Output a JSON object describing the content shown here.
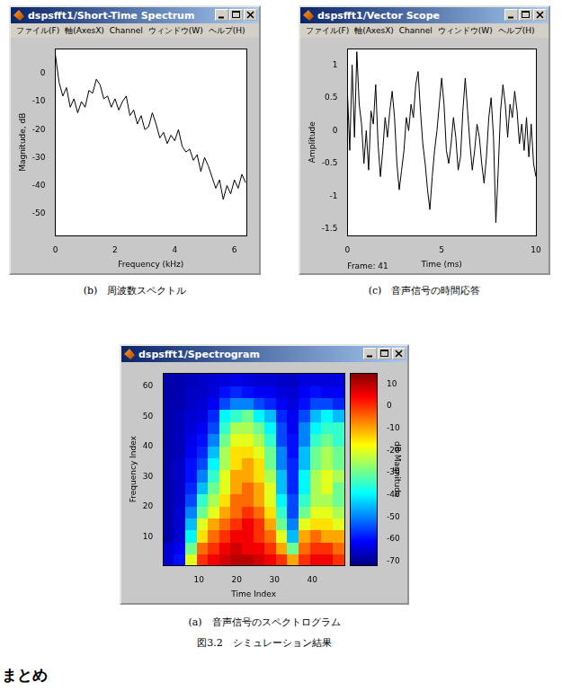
{
  "chart_data": [
    {
      "type": "line",
      "window_title": "dspsfft1/Short-Time Spectrum",
      "menu": [
        "ファイル(F)",
        "軸(AxesX)",
        "Channel",
        "ウィンドウ(W)",
        "ヘルプ(H)"
      ],
      "caption": "(b)　周波数スペクトル",
      "x_label": "Frequency (kHz)",
      "y_label": "Magnitude, dB",
      "xlim": [
        0,
        6.4
      ],
      "xticks": [
        0,
        2,
        4,
        6
      ],
      "ylim": [
        -58,
        9
      ],
      "yticks": [
        -50,
        -40,
        -30,
        -20,
        -10,
        0
      ],
      "grid": false,
      "color": "#000000",
      "x": [
        0,
        0.125,
        0.25,
        0.375,
        0.5,
        0.625,
        0.75,
        0.875,
        1,
        1.125,
        1.25,
        1.375,
        1.5,
        1.625,
        1.75,
        1.875,
        2,
        2.125,
        2.25,
        2.375,
        2.5,
        2.625,
        2.75,
        2.875,
        3,
        3.125,
        3.25,
        3.375,
        3.5,
        3.625,
        3.75,
        3.875,
        4,
        4.125,
        4.25,
        4.375,
        4.5,
        4.625,
        4.75,
        4.875,
        5,
        5.125,
        5.25,
        5.375,
        5.5,
        5.625,
        5.75,
        5.875,
        6,
        6.125,
        6.25,
        6.375
      ],
      "values": [
        7,
        -3,
        -8,
        -5,
        -12,
        -9,
        -14,
        -10,
        -12,
        -6,
        -7,
        -2,
        -4,
        -9,
        -8,
        -12,
        -9,
        -13,
        -10,
        -8,
        -15,
        -13,
        -18,
        -15,
        -20,
        -19,
        -14,
        -18,
        -23,
        -21,
        -25,
        -22,
        -24,
        -20,
        -26,
        -28,
        -27,
        -31,
        -29,
        -35,
        -30,
        -33,
        -37,
        -41,
        -38,
        -45,
        -40,
        -43,
        -38,
        -41,
        -36,
        -39
      ]
    },
    {
      "type": "line",
      "window_title": "dspsfft1/Vector Scope",
      "menu": [
        "ファイル(F)",
        "軸(AxesX)",
        "Channel",
        "ウィンドウ(W)",
        "ヘルプ(H)"
      ],
      "caption": "(c)　音声信号の時間応答",
      "frame_label": "Frame: 41",
      "x_label": "Time (ms)",
      "y_label": "Amplitude",
      "xlim": [
        0,
        10
      ],
      "xticks": [
        0,
        5,
        10
      ],
      "ylim": [
        -1.6,
        1.25
      ],
      "yticks": [
        -1.5,
        -1,
        -0.5,
        0,
        0.5,
        1
      ],
      "grid": false,
      "color": "#000000",
      "x": [
        0,
        0.125,
        0.25,
        0.375,
        0.5,
        0.625,
        0.75,
        0.875,
        1,
        1.125,
        1.25,
        1.375,
        1.5,
        1.625,
        1.75,
        1.875,
        2,
        2.125,
        2.25,
        2.375,
        2.5,
        2.625,
        2.75,
        2.875,
        3,
        3.125,
        3.25,
        3.375,
        3.5,
        3.625,
        3.75,
        3.875,
        4,
        4.125,
        4.25,
        4.375,
        4.5,
        4.625,
        4.75,
        4.875,
        5,
        5.125,
        5.25,
        5.375,
        5.5,
        5.625,
        5.75,
        5.875,
        6,
        6.125,
        6.25,
        6.375,
        6.5,
        6.625,
        6.75,
        6.875,
        7,
        7.125,
        7.25,
        7.375,
        7.5,
        7.625,
        7.75,
        7.875,
        8,
        8.125,
        8.25,
        8.375,
        8.5,
        8.625,
        8.75,
        8.875,
        9,
        9.125,
        9.25,
        9.375,
        9.5,
        9.625,
        9.75,
        9.875,
        10
      ],
      "values": [
        0.6,
        -0.3,
        1.0,
        -0.1,
        1.2,
        0.4,
        0.1,
        -0.5,
        0.0,
        -0.6,
        0.3,
        0.1,
        0.7,
        -0.2,
        -0.7,
        -0.3,
        0.2,
        -0.1,
        0.3,
        0.6,
        0.2,
        -0.5,
        -0.9,
        -0.6,
        -0.3,
        0.2,
        0.0,
        0.4,
        0.2,
        0.7,
        0.9,
        0.3,
        -0.2,
        -0.5,
        -0.9,
        -1.2,
        -0.7,
        -0.3,
        0.0,
        0.4,
        0.8,
        0.4,
        -0.3,
        -0.5,
        -0.2,
        0.2,
        -0.1,
        -0.6,
        -0.4,
        0.3,
        0.8,
        0.3,
        -0.2,
        -0.6,
        -0.3,
        0.1,
        -0.1,
        -0.5,
        -0.8,
        -0.4,
        0.2,
        0.5,
        -0.1,
        -1.4,
        -0.6,
        0.3,
        0.7,
        0.4,
        -0.1,
        0.4,
        0.2,
        0.6,
        0.3,
        -0.2,
        0.1,
        -0.3,
        0.2,
        -0.4,
        0.1,
        -0.5,
        -0.7
      ]
    },
    {
      "type": "heatmap",
      "window_title": "dspsfft1/Spectrogram",
      "caption": "(a)　音声信号のスペクトログラム",
      "x_label": "Time Index",
      "y_label": "Frequency Index",
      "xlim": [
        0.5,
        48.5
      ],
      "xticks": [
        10,
        20,
        30,
        40
      ],
      "ylim": [
        0.5,
        64.5
      ],
      "yticks": [
        10,
        20,
        30,
        40,
        50,
        60
      ],
      "grid": false,
      "x_bins": [
        0.5,
        3.5,
        6.5,
        9.5,
        12.5,
        15.5,
        18.5,
        21.5,
        24.5,
        27.5,
        30.5,
        33.5,
        36.5,
        39.5,
        42.5,
        45.5,
        48.5
      ],
      "y_bins": [
        0.5,
        4.5,
        8.5,
        12.5,
        16.5,
        20.5,
        24.5,
        28.5,
        32.5,
        36.5,
        40.5,
        44.5,
        48.5,
        52.5,
        56.5,
        60.5,
        64.5
      ],
      "cells": [
        [
          -65,
          -60,
          -20,
          0,
          5,
          8,
          10,
          10,
          8,
          5,
          0,
          -10,
          0,
          5,
          5,
          0
        ],
        [
          -65,
          -62,
          -30,
          -5,
          0,
          5,
          8,
          5,
          5,
          0,
          -10,
          -30,
          -5,
          0,
          0,
          -5
        ],
        [
          -68,
          -65,
          -40,
          -15,
          -5,
          0,
          5,
          5,
          0,
          -5,
          -20,
          -45,
          -10,
          -5,
          -10,
          -10
        ],
        [
          -68,
          -65,
          -45,
          -20,
          -10,
          -5,
          0,
          5,
          0,
          -10,
          -30,
          -50,
          -20,
          -15,
          -15,
          -20
        ],
        [
          -68,
          -65,
          -50,
          -30,
          -20,
          -10,
          -5,
          0,
          -5,
          -15,
          -35,
          -55,
          -30,
          -20,
          -20,
          -25
        ],
        [
          -68,
          -66,
          -55,
          -35,
          -25,
          -15,
          -5,
          -5,
          -10,
          -20,
          -40,
          -55,
          -35,
          -25,
          -25,
          -30
        ],
        [
          -68,
          -66,
          -58,
          -45,
          -30,
          -20,
          -10,
          -5,
          -10,
          -20,
          -45,
          -58,
          -40,
          -25,
          -20,
          -30
        ],
        [
          -68,
          -66,
          -60,
          -50,
          -35,
          -20,
          -10,
          -10,
          -15,
          -25,
          -45,
          -58,
          -40,
          -25,
          -20,
          -25
        ],
        [
          -68,
          -66,
          -60,
          -55,
          -40,
          -25,
          -15,
          -10,
          -15,
          -30,
          -50,
          -58,
          -45,
          -30,
          -25,
          -30
        ],
        [
          -68,
          -67,
          -62,
          -58,
          -45,
          -25,
          -15,
          -15,
          -20,
          -30,
          -50,
          -60,
          -45,
          -30,
          -25,
          -30
        ],
        [
          -68,
          -67,
          -63,
          -60,
          -50,
          -30,
          -20,
          -20,
          -25,
          -35,
          -55,
          -60,
          -50,
          -35,
          -30,
          -35
        ],
        [
          -68,
          -67,
          -64,
          -62,
          -55,
          -35,
          -25,
          -25,
          -30,
          -40,
          -55,
          -62,
          -50,
          -40,
          -35,
          -35
        ],
        [
          -68,
          -67,
          -65,
          -64,
          -58,
          -40,
          -35,
          -30,
          -40,
          -45,
          -58,
          -62,
          -55,
          -45,
          -40,
          -45
        ],
        [
          -68,
          -68,
          -66,
          -65,
          -62,
          -55,
          -50,
          -50,
          -55,
          -58,
          -62,
          -64,
          -60,
          -55,
          -55,
          -58
        ],
        [
          -68,
          -68,
          -66,
          -66,
          -64,
          -60,
          -58,
          -60,
          -62,
          -62,
          -64,
          -65,
          -62,
          -60,
          -62,
          -62
        ],
        [
          -68,
          -68,
          -67,
          -66,
          -65,
          -64,
          -63,
          -64,
          -65,
          -65,
          -66,
          -66,
          -64,
          -64,
          -64,
          -64
        ]
      ],
      "colorbar": {
        "label": "dB Magnitude",
        "lim": [
          -72,
          15
        ],
        "ticks": [
          -70,
          -60,
          -50,
          -40,
          -30,
          -20,
          -10,
          0,
          10
        ]
      }
    }
  ],
  "figure_caption": "図3.2　シミュレーション結果",
  "heading": "まとめ"
}
